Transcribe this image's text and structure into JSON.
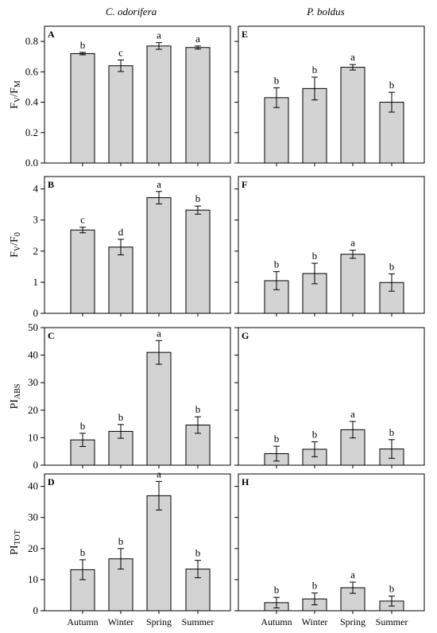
{
  "columns": [
    "C. odorifera",
    "P. boldus"
  ],
  "chart_data": [
    {
      "type": "bar",
      "panel": "A",
      "column": "C. odorifera",
      "ylabel": {
        "main": "F",
        "sub1": "V",
        "mid": "/F",
        "sub2": "M"
      },
      "ylim": [
        0,
        0.9
      ],
      "yticks": [
        0.0,
        0.2,
        0.4,
        0.6,
        0.8
      ],
      "decimals": 1,
      "categories": [
        "Autumn",
        "Winter",
        "Spring",
        "Summer"
      ],
      "values": [
        0.72,
        0.64,
        0.77,
        0.76
      ],
      "errors": [
        0.008,
        0.038,
        0.022,
        0.01
      ],
      "labels": [
        "b",
        "c",
        "a",
        "a"
      ]
    },
    {
      "type": "bar",
      "panel": "E",
      "column": "P. boldus",
      "ylim": [
        0,
        0.9
      ],
      "yticks": [
        0.0,
        0.2,
        0.4,
        0.6,
        0.8
      ],
      "decimals": 1,
      "categories": [
        "Autumn",
        "Winter",
        "Spring",
        "Summer"
      ],
      "values": [
        0.43,
        0.49,
        0.63,
        0.4
      ],
      "errors": [
        0.065,
        0.075,
        0.018,
        0.065
      ],
      "labels": [
        "b",
        "b",
        "a",
        "b"
      ]
    },
    {
      "type": "bar",
      "panel": "B",
      "column": "C. odorifera",
      "ylabel": {
        "main": "F",
        "sub1": "V",
        "mid": "/F",
        "sub2": "0"
      },
      "ylim": [
        0,
        4.4
      ],
      "yticks": [
        0,
        1,
        2,
        3,
        4
      ],
      "decimals": 0,
      "categories": [
        "Autumn",
        "Winter",
        "Spring",
        "Summer"
      ],
      "values": [
        2.68,
        2.13,
        3.72,
        3.32
      ],
      "errors": [
        0.09,
        0.25,
        0.2,
        0.13
      ],
      "labels": [
        "c",
        "d",
        "a",
        "b"
      ]
    },
    {
      "type": "bar",
      "panel": "F",
      "column": "P. boldus",
      "ylim": [
        0,
        4.4
      ],
      "yticks": [
        0,
        1,
        2,
        3,
        4
      ],
      "decimals": 0,
      "categories": [
        "Autumn",
        "Winter",
        "Spring",
        "Summer"
      ],
      "values": [
        1.05,
        1.28,
        1.9,
        0.99
      ],
      "errors": [
        0.29,
        0.33,
        0.13,
        0.28
      ],
      "labels": [
        "b",
        "b",
        "a",
        "b"
      ]
    },
    {
      "type": "bar",
      "panel": "C",
      "column": "C. odorifera",
      "ylabel": {
        "main": "PI",
        "sub1": "ABS",
        "mid": "",
        "sub2": ""
      },
      "ylim": [
        0,
        50
      ],
      "yticks": [
        0,
        10,
        20,
        30,
        40,
        50
      ],
      "decimals": 0,
      "categories": [
        "Autumn",
        "Winter",
        "Spring",
        "Summer"
      ],
      "values": [
        9.2,
        12.3,
        41.0,
        14.6
      ],
      "errors": [
        2.4,
        2.5,
        4.3,
        3.0
      ],
      "labels": [
        "b",
        "b",
        "a",
        "b"
      ]
    },
    {
      "type": "bar",
      "panel": "G",
      "column": "P. boldus",
      "ylim": [
        0,
        50
      ],
      "yticks": [
        0,
        10,
        20,
        30,
        40,
        50
      ],
      "decimals": 0,
      "categories": [
        "Autumn",
        "Winter",
        "Spring",
        "Summer"
      ],
      "values": [
        4.2,
        5.8,
        12.9,
        5.9
      ],
      "errors": [
        2.7,
        2.7,
        3.0,
        3.4
      ],
      "labels": [
        "b",
        "b",
        "a",
        "b"
      ]
    },
    {
      "type": "bar",
      "panel": "D",
      "column": "C. odorifera",
      "ylabel": {
        "main": "PI",
        "sub1": "TOT",
        "mid": "",
        "sub2": ""
      },
      "ylim": [
        0,
        44
      ],
      "yticks": [
        0,
        10,
        20,
        30,
        40
      ],
      "decimals": 0,
      "categories": [
        "Autumn",
        "Winter",
        "Spring",
        "Summer"
      ],
      "values": [
        13.2,
        16.7,
        37.0,
        13.4
      ],
      "errors": [
        3.2,
        3.3,
        4.6,
        2.8
      ],
      "labels": [
        "b",
        "b",
        "a",
        "b"
      ]
    },
    {
      "type": "bar",
      "panel": "H",
      "column": "P. boldus",
      "ylim": [
        0,
        44
      ],
      "yticks": [
        0,
        10,
        20,
        30,
        40
      ],
      "decimals": 0,
      "categories": [
        "Autumn",
        "Winter",
        "Spring",
        "Summer"
      ],
      "values": [
        2.6,
        3.8,
        7.4,
        3.1
      ],
      "errors": [
        1.7,
        1.9,
        1.8,
        1.6
      ],
      "labels": [
        "b",
        "b",
        "a",
        "b"
      ]
    }
  ],
  "colors": {
    "bar_fill": "#d3d3d3",
    "stroke": "#000000",
    "background": "#ffffff"
  }
}
